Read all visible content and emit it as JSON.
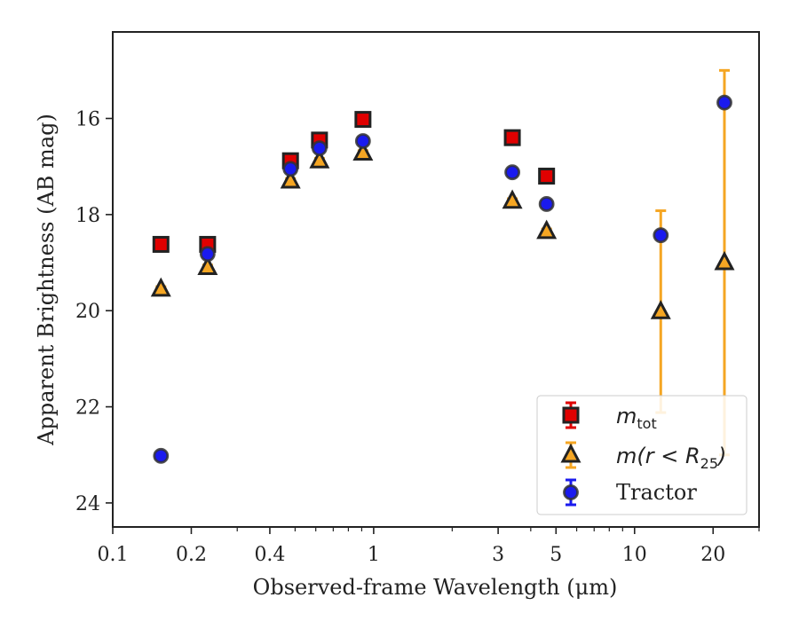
{
  "chart_data": {
    "type": "scatter",
    "xlabel": "Observed-frame Wavelength (μm)",
    "ylabel": "Apparent Brightness (AB mag)",
    "xscale": "log",
    "xlim": [
      0.1,
      30
    ],
    "ylim": [
      24.5,
      14.2
    ],
    "y_inverted": true,
    "x_ticks": [
      0.1,
      0.2,
      0.4,
      1,
      3,
      5,
      10,
      20
    ],
    "x_tick_labels": [
      "0.1",
      "0.2",
      "0.4",
      "1",
      "3",
      "5",
      "10",
      "20"
    ],
    "y_ticks": [
      16,
      18,
      20,
      22,
      24
    ],
    "y_tick_labels": [
      "16",
      "18",
      "20",
      "22",
      "24"
    ],
    "legend_position": "lower right",
    "grid": false,
    "series": [
      {
        "name": "m_tot",
        "marker": "square",
        "color": "#e00000",
        "edge_color": "#222222",
        "x": [
          0.153,
          0.231,
          0.48,
          0.62,
          0.91,
          3.4,
          4.6
        ],
        "y": [
          18.62,
          18.62,
          16.88,
          16.45,
          16.02,
          16.4,
          17.2
        ],
        "yerr": [
          0.05,
          0.05,
          0.05,
          0.05,
          0.05,
          0.05,
          0.05
        ]
      },
      {
        "name": "m(r < R25)",
        "marker": "triangle",
        "color": "#f5a623",
        "edge_color": "#222222",
        "x": [
          0.153,
          0.231,
          0.48,
          0.62,
          0.91,
          3.4,
          4.6,
          12.6,
          22.1
        ],
        "y": [
          19.55,
          19.1,
          17.3,
          16.88,
          16.72,
          17.72,
          18.35,
          20.02,
          19.0
        ],
        "yerr": [
          0.05,
          0.05,
          0.05,
          0.05,
          0.05,
          0.05,
          0.05,
          2.1,
          4.0
        ]
      },
      {
        "name": "Tractor",
        "marker": "circle",
        "color": "#1a1aee",
        "edge_color": "#333333",
        "x": [
          0.153,
          0.231,
          0.48,
          0.62,
          0.91,
          3.4,
          4.6,
          12.6,
          22.1
        ],
        "y": [
          23.02,
          18.82,
          17.05,
          16.62,
          16.47,
          17.12,
          17.78,
          18.43,
          15.67
        ],
        "yerr": [
          0.05,
          0.05,
          0.05,
          0.05,
          0.05,
          0.05,
          0.05,
          0.05,
          0.05
        ]
      }
    ]
  },
  "legend": {
    "m_tot_base": "m",
    "m_tot_sub": "tot",
    "m_r_base": "m(r < R",
    "m_r_sub": "25",
    "m_r_close": ")",
    "tractor": "Tractor"
  }
}
